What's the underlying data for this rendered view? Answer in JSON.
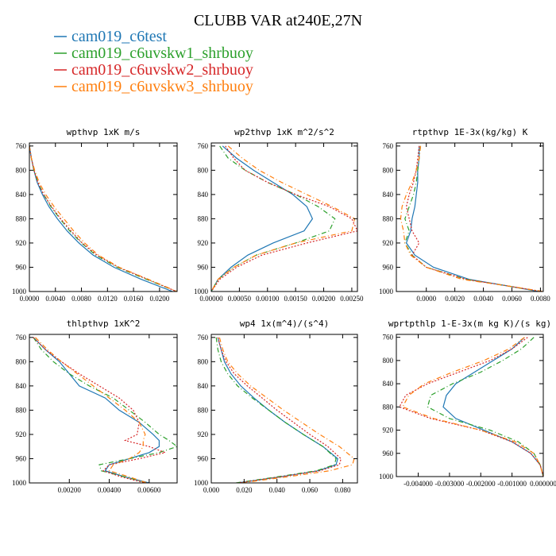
{
  "figure": {
    "title": "CLUBB VAR at240E,27N",
    "legend": [
      {
        "name": "cam019_c6test",
        "color": "#1f77b4"
      },
      {
        "name": "cam019_c6uvskw1_shrbuoy",
        "color": "#2ca02c"
      },
      {
        "name": "cam019_c6uvskw2_shrbuoy",
        "color": "#d62728"
      },
      {
        "name": "cam019_c6uvskw3_shrbuoy",
        "color": "#ff7f0e"
      }
    ]
  },
  "chart_data": [
    {
      "type": "line",
      "title": "wpthvp  1xK m/s",
      "xlim": [
        0,
        0.0227
      ],
      "ylim": [
        1000,
        755
      ],
      "xticks": [
        0,
        0.004,
        0.008,
        0.012,
        0.016,
        0.02
      ],
      "xtick_labels": [
        "0.0000",
        "0.0040",
        "0.0080",
        "0.0120",
        "0.0160",
        "0.0200"
      ],
      "yticks": [
        760,
        800,
        840,
        880,
        920,
        960,
        1000
      ],
      "y": [
        760,
        780,
        800,
        820,
        840,
        860,
        880,
        900,
        920,
        940,
        960,
        980,
        1000
      ],
      "series": [
        {
          "name": "cam019_c6test",
          "dash": "",
          "values": [
            0.0,
            0.0003,
            0.0007,
            0.0012,
            0.002,
            0.003,
            0.0043,
            0.0058,
            0.0076,
            0.0098,
            0.013,
            0.0172,
            0.022
          ]
        },
        {
          "name": "cam019_c6uvskw1_shrbuoy",
          "dash": "6,3,1,3",
          "values": [
            0.0,
            0.0003,
            0.0007,
            0.0013,
            0.0022,
            0.0033,
            0.0047,
            0.0062,
            0.008,
            0.0102,
            0.0135,
            0.018,
            0.0226
          ]
        },
        {
          "name": "cam019_c6uvskw2_shrbuoy",
          "dash": "2,2",
          "values": [
            0.0,
            0.0003,
            0.0007,
            0.0013,
            0.0022,
            0.0034,
            0.0048,
            0.0064,
            0.0081,
            0.0104,
            0.0137,
            0.0182,
            0.0226
          ]
        },
        {
          "name": "cam019_c6uvskw3_shrbuoy",
          "dash": "6,3,1,3",
          "values": [
            0.0,
            0.0003,
            0.0008,
            0.0015,
            0.0025,
            0.0038,
            0.0053,
            0.0068,
            0.0085,
            0.0106,
            0.0138,
            0.0183,
            0.0227
          ]
        }
      ]
    },
    {
      "type": "line",
      "title": "wp2thvp  1xK m^2/s^2",
      "xlim": [
        0,
        0.0026
      ],
      "ylim": [
        1000,
        755
      ],
      "xticks": [
        0,
        0.0005,
        0.001,
        0.0015,
        0.002,
        0.0025
      ],
      "xtick_labels": [
        "0.00000",
        "0.00050",
        "0.00100",
        "0.00150",
        "0.00200",
        "0.00250"
      ],
      "yticks": [
        760,
        800,
        840,
        880,
        920,
        960,
        1000
      ],
      "y": [
        760,
        780,
        800,
        820,
        840,
        860,
        880,
        900,
        920,
        940,
        960,
        980,
        1000
      ],
      "series": [
        {
          "name": "cam019_c6test",
          "dash": "",
          "values": [
            0.0002,
            0.00045,
            0.00075,
            0.0011,
            0.00145,
            0.0017,
            0.0018,
            0.00165,
            0.0011,
            0.00065,
            0.00035,
            0.00012,
            0.0
          ]
        },
        {
          "name": "cam019_c6uvskw1_shrbuoy",
          "dash": "6,3,1,3",
          "values": [
            0.00015,
            0.0003,
            0.0006,
            0.001,
            0.0015,
            0.0019,
            0.0022,
            0.0021,
            0.0015,
            0.0008,
            0.0004,
            0.00012,
            0.0
          ]
        },
        {
          "name": "cam019_c6uvskw2_shrbuoy",
          "dash": "2,2",
          "values": [
            0.00025,
            0.0004,
            0.0006,
            0.001,
            0.0015,
            0.0021,
            0.0025,
            0.0026,
            0.0017,
            0.0009,
            0.00045,
            0.00015,
            0.0
          ]
        },
        {
          "name": "cam019_c6uvskw3_shrbuoy",
          "dash": "6,3,1,3",
          "values": [
            0.0003,
            0.00055,
            0.00085,
            0.00125,
            0.0017,
            0.00215,
            0.00255,
            0.0025,
            0.0015,
            0.0008,
            0.0004,
            0.00012,
            0.0
          ]
        }
      ]
    },
    {
      "type": "line",
      "title": "rtpthvp  1E-3x(kg/kg) K",
      "xlim": [
        -0.0021,
        0.0082
      ],
      "ylim": [
        1000,
        755
      ],
      "xticks": [
        0,
        0.002,
        0.004,
        0.006,
        0.008
      ],
      "xtick_labels": [
        "0.0000",
        "0.0020",
        "0.0040",
        "0.0060",
        "0.0080"
      ],
      "yticks": [
        760,
        800,
        840,
        880,
        920,
        960,
        1000
      ],
      "y": [
        760,
        780,
        800,
        820,
        840,
        860,
        880,
        900,
        920,
        940,
        960,
        980,
        990,
        1000
      ],
      "series": [
        {
          "name": "cam019_c6test",
          "dash": "",
          "values": [
            -0.0005,
            -0.0005,
            -0.0006,
            -0.0006,
            -0.0007,
            -0.0008,
            -0.001,
            -0.0011,
            -0.0014,
            -0.0008,
            0.0005,
            0.003,
            0.0055,
            0.0079
          ]
        },
        {
          "name": "cam019_c6uvskw1_shrbuoy",
          "dash": "6,3,1,3",
          "values": [
            -0.0004,
            -0.0005,
            -0.0006,
            -0.0007,
            -0.0009,
            -0.0012,
            -0.0015,
            -0.0012,
            -0.0015,
            -0.001,
            0.0,
            0.0028,
            0.0055,
            0.008
          ]
        },
        {
          "name": "cam019_c6uvskw2_shrbuoy",
          "dash": "2,2",
          "values": [
            -0.0005,
            -0.0006,
            -0.0007,
            -0.0009,
            -0.0012,
            -0.0014,
            -0.0012,
            -0.001,
            -0.0005,
            -0.001,
            0.0,
            0.0028,
            0.0055,
            0.0081
          ]
        },
        {
          "name": "cam019_c6uvskw3_shrbuoy",
          "dash": "6,3,1,3",
          "values": [
            -0.0004,
            -0.0005,
            -0.0007,
            -0.001,
            -0.0014,
            -0.0017,
            -0.0018,
            -0.0016,
            -0.0015,
            -0.0011,
            0.0,
            0.0025,
            0.0055,
            0.0082
          ]
        }
      ]
    },
    {
      "type": "line",
      "title": "thlpthvp  1xK^2",
      "xlim": [
        0,
        0.0074
      ],
      "ylim": [
        1000,
        755
      ],
      "xticks": [
        0.002,
        0.004,
        0.006
      ],
      "xtick_labels": [
        "0.00200",
        "0.00400",
        "0.00600"
      ],
      "yticks": [
        760,
        800,
        840,
        880,
        920,
        960,
        1000
      ],
      "y": [
        760,
        780,
        800,
        820,
        840,
        860,
        880,
        900,
        920,
        930,
        940,
        950,
        960,
        970,
        980,
        990,
        1000
      ],
      "series": [
        {
          "name": "cam019_c6test",
          "dash": "",
          "values": [
            0.0002,
            0.0008,
            0.0015,
            0.002,
            0.0025,
            0.0038,
            0.0045,
            0.0055,
            0.0062,
            0.0065,
            0.0065,
            0.006,
            0.005,
            0.004,
            0.0038,
            0.0048,
            0.006
          ]
        },
        {
          "name": "cam019_c6uvskw1_shrbuoy",
          "dash": "6,3,1,3",
          "values": [
            0.0002,
            0.0006,
            0.0012,
            0.002,
            0.003,
            0.0042,
            0.005,
            0.0058,
            0.0065,
            0.007,
            0.0074,
            0.0065,
            0.005,
            0.0035,
            0.0036,
            0.0048,
            0.0059
          ]
        },
        {
          "name": "cam019_c6uvskw2_shrbuoy",
          "dash": "2,2",
          "values": [
            0.0002,
            0.0008,
            0.0016,
            0.0025,
            0.0035,
            0.0045,
            0.0052,
            0.0055,
            0.0054,
            0.0048,
            0.006,
            0.0068,
            0.0055,
            0.004,
            0.0037,
            0.0046,
            0.0058
          ]
        },
        {
          "name": "cam019_c6uvskw3_shrbuoy",
          "dash": "6,3,1,3",
          "values": [
            0.0003,
            0.0009,
            0.0016,
            0.0024,
            0.0032,
            0.004,
            0.0048,
            0.0055,
            0.0058,
            0.0057,
            0.0057,
            0.0055,
            0.005,
            0.0042,
            0.004,
            0.005,
            0.0059
          ]
        }
      ]
    },
    {
      "type": "line",
      "title": "wp4  1x(m^4)/(s^4)",
      "xlim": [
        0,
        0.089
      ],
      "ylim": [
        1000,
        755
      ],
      "xticks": [
        0,
        0.02,
        0.04,
        0.06,
        0.08
      ],
      "xtick_labels": [
        "0.000",
        "0.020",
        "0.040",
        "0.060",
        "0.080"
      ],
      "yticks": [
        760,
        800,
        840,
        880,
        920,
        960,
        1000
      ],
      "y": [
        760,
        780,
        800,
        820,
        840,
        860,
        880,
        900,
        920,
        940,
        960,
        970,
        980,
        990,
        1000
      ],
      "series": [
        {
          "name": "cam019_c6test",
          "dash": "",
          "values": [
            0.004,
            0.006,
            0.008,
            0.012,
            0.018,
            0.026,
            0.035,
            0.045,
            0.056,
            0.068,
            0.077,
            0.076,
            0.065,
            0.042,
            0.016
          ]
        },
        {
          "name": "cam019_c6uvskw1_shrbuoy",
          "dash": "6,3,1,3",
          "values": [
            0.003,
            0.004,
            0.006,
            0.01,
            0.016,
            0.025,
            0.035,
            0.045,
            0.056,
            0.068,
            0.076,
            0.075,
            0.064,
            0.04,
            0.015
          ]
        },
        {
          "name": "cam019_c6uvskw2_shrbuoy",
          "dash": "2,2",
          "values": [
            0.004,
            0.006,
            0.009,
            0.014,
            0.022,
            0.031,
            0.04,
            0.05,
            0.06,
            0.071,
            0.079,
            0.078,
            0.066,
            0.042,
            0.016
          ]
        },
        {
          "name": "cam019_c6uvskw3_shrbuoy",
          "dash": "6,3,1,3",
          "values": [
            0.005,
            0.007,
            0.01,
            0.016,
            0.024,
            0.034,
            0.044,
            0.055,
            0.066,
            0.078,
            0.087,
            0.086,
            0.072,
            0.046,
            0.018
          ]
        }
      ]
    },
    {
      "type": "line",
      "title": "wprtpthlp  1-E-3x(m kg K)/(s kg)",
      "xlim": [
        -0.0047,
        0
      ],
      "ylim": [
        1000,
        755
      ],
      "xticks": [
        -0.004,
        -0.003,
        -0.002,
        -0.001,
        0
      ],
      "xtick_labels": [
        "-0.004000",
        "-0.003000",
        "-0.002000",
        "-0.001000",
        "0.000000"
      ],
      "yticks": [
        760,
        800,
        840,
        880,
        920,
        960,
        1000
      ],
      "y": [
        760,
        780,
        800,
        820,
        840,
        860,
        880,
        900,
        920,
        940,
        960,
        980,
        1000
      ],
      "series": [
        {
          "name": "cam019_c6test",
          "dash": "",
          "values": [
            -0.0006,
            -0.001,
            -0.0016,
            -0.0022,
            -0.0028,
            -0.0031,
            -0.0032,
            -0.0028,
            -0.0019,
            -0.001,
            -0.0004,
            -0.0001,
            0.0
          ]
        },
        {
          "name": "cam019_c6uvskw1_shrbuoy",
          "dash": "6,3,1,3",
          "values": [
            -0.0003,
            -0.0007,
            -0.0013,
            -0.002,
            -0.0029,
            -0.0036,
            -0.0037,
            -0.003,
            -0.0017,
            -0.0008,
            -0.0003,
            -0.0001,
            0.0
          ]
        },
        {
          "name": "cam019_c6uvskw2_shrbuoy",
          "dash": "2,2",
          "values": [
            -0.0005,
            -0.001,
            -0.0017,
            -0.0027,
            -0.0037,
            -0.0044,
            -0.0046,
            -0.0036,
            -0.002,
            -0.001,
            -0.0004,
            -0.0001,
            0.0
          ]
        },
        {
          "name": "cam019_c6uvskw3_shrbuoy",
          "dash": "6,3,1,3",
          "values": [
            -0.0006,
            -0.0011,
            -0.0019,
            -0.0029,
            -0.0038,
            -0.0043,
            -0.0045,
            -0.0035,
            -0.002,
            -0.0009,
            -0.0003,
            -0.0001,
            0.0
          ]
        }
      ]
    }
  ]
}
